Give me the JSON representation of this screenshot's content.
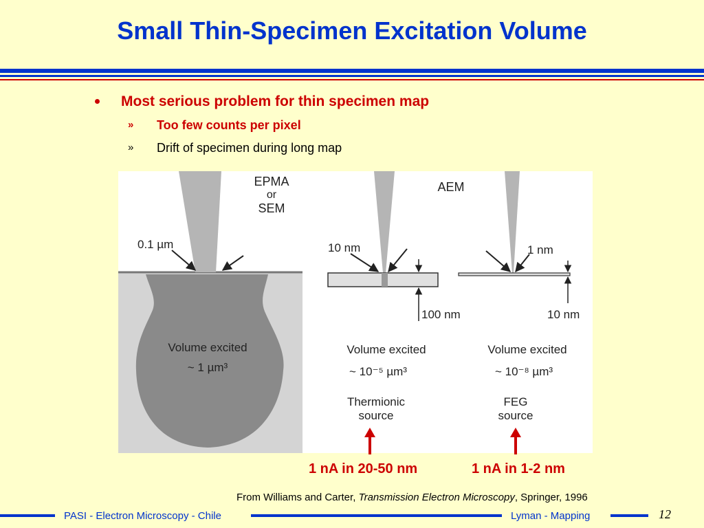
{
  "slide": {
    "title": "Small Thin-Specimen Excitation Volume",
    "bullet": "Most serious problem for thin specimen map",
    "sub_bullets": [
      {
        "marker": "»",
        "text": "Too few counts per pixel"
      },
      {
        "marker": "»",
        "text": "Drift of specimen during long map"
      }
    ]
  },
  "figure": {
    "epma_label_1": "EPMA",
    "epma_label_2": "or",
    "epma_label_3": "SEM",
    "aem_label": "AEM",
    "beam_01": "0.1 µm",
    "beam_10nm": "10 nm",
    "beam_1nm": "1 nm",
    "thick_100nm": "100 nm",
    "thick_10nm": "10 nm",
    "bulk_vol_1": "Volume excited",
    "bulk_vol_2": "~ 1 µm³",
    "thermionic_vol_1": "Volume excited",
    "thermionic_vol_2": "~ 10⁻⁵ µm³",
    "thermionic_src_1": "Thermionic",
    "thermionic_src_2": "source",
    "feg_vol_1": "Volume excited",
    "feg_vol_2": "~ 10⁻⁸ µm³",
    "feg_src_1": "FEG",
    "feg_src_2": "source"
  },
  "callouts": {
    "thermionic": "1 nA in 20-50 nm",
    "feg": "1 nA in 1-2 nm"
  },
  "credit": {
    "prefix": "From Williams and Carter, ",
    "book": "Transmission Electron Microscopy",
    "suffix": ", Springer, 1996"
  },
  "footer": {
    "left": "PASI - Electron Microscopy - Chile",
    "right": "Lyman - Mapping",
    "page": "12"
  },
  "colors": {
    "title_blue": "#0033cc",
    "accent_red": "#cc0000",
    "background": "#ffffcc"
  }
}
